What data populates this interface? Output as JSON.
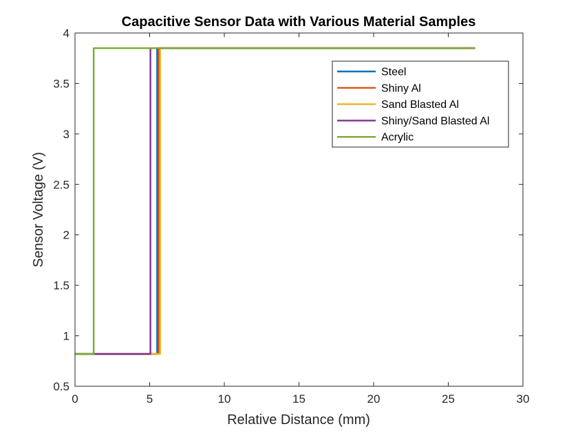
{
  "chart_data": {
    "type": "line",
    "title": "Capacitive Sensor Data with Various Material Samples",
    "xlabel": "Relative Distance (mm)",
    "ylabel": "Sensor Voltage (V)",
    "xlim": [
      0,
      30
    ],
    "ylim": [
      0.5,
      4
    ],
    "xticks": [
      0,
      5,
      10,
      15,
      20,
      25,
      30
    ],
    "yticks": [
      0.5,
      1,
      1.5,
      2,
      2.5,
      3,
      3.5,
      4
    ],
    "xtick_labels": [
      "0",
      "5",
      "10",
      "15",
      "20",
      "25",
      "30"
    ],
    "ytick_labels": [
      "0.5",
      "1",
      "1.5",
      "2",
      "2.5",
      "3",
      "3.5",
      "4"
    ],
    "grid": false,
    "legend_position": "top-right",
    "series": [
      {
        "name": "Steel",
        "color": "#0072BD",
        "x": [
          0,
          5.5,
          5.5,
          26.8
        ],
        "y": [
          0.82,
          0.82,
          3.85,
          3.85
        ]
      },
      {
        "name": "Shiny Al",
        "color": "#D95319",
        "x": [
          0,
          5.6,
          5.6,
          26.8
        ],
        "y": [
          0.82,
          0.82,
          3.85,
          3.85
        ]
      },
      {
        "name": "Sand Blasted Al",
        "color": "#EDB120",
        "x": [
          0,
          5.7,
          5.7,
          26.8
        ],
        "y": [
          0.82,
          0.82,
          3.85,
          3.85
        ]
      },
      {
        "name": "Shiny/Sand Blasted Al",
        "color": "#7E2F8E",
        "x": [
          0,
          5.05,
          5.05,
          5.55,
          5.55,
          26.8
        ],
        "y": [
          0.82,
          0.82,
          3.85,
          3.85,
          3.85,
          3.85
        ]
      },
      {
        "name": "Acrylic",
        "color": "#77AC30",
        "x": [
          0,
          1.25,
          1.25,
          1.75,
          1.75,
          26.8
        ],
        "y": [
          0.82,
          0.82,
          3.85,
          3.85,
          3.85,
          3.85
        ]
      }
    ]
  }
}
